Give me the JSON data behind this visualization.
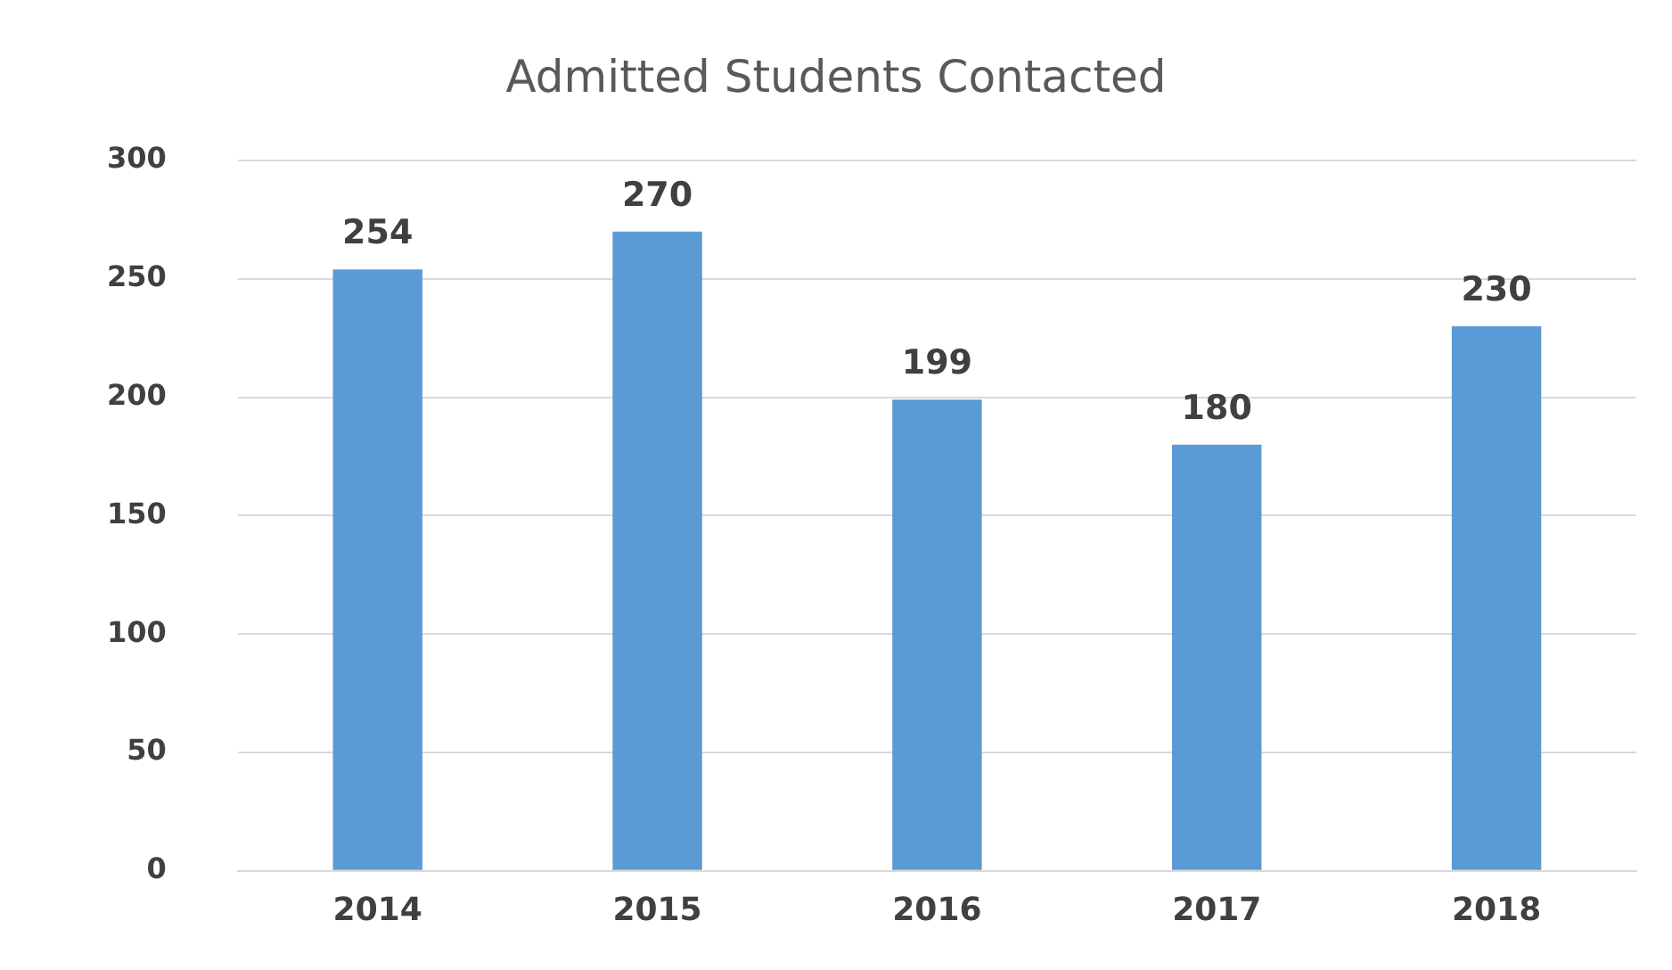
{
  "chart_data": {
    "type": "bar",
    "title": "Admitted Students Contacted",
    "categories": [
      "2014",
      "2015",
      "2016",
      "2017",
      "2018"
    ],
    "values": [
      254,
      270,
      199,
      180,
      230
    ],
    "color": "#5b9bd5",
    "ylim": [
      0,
      300
    ],
    "yticks": [
      0,
      50,
      100,
      150,
      200,
      250,
      300
    ],
    "grid": "y",
    "data_labels": true
  }
}
